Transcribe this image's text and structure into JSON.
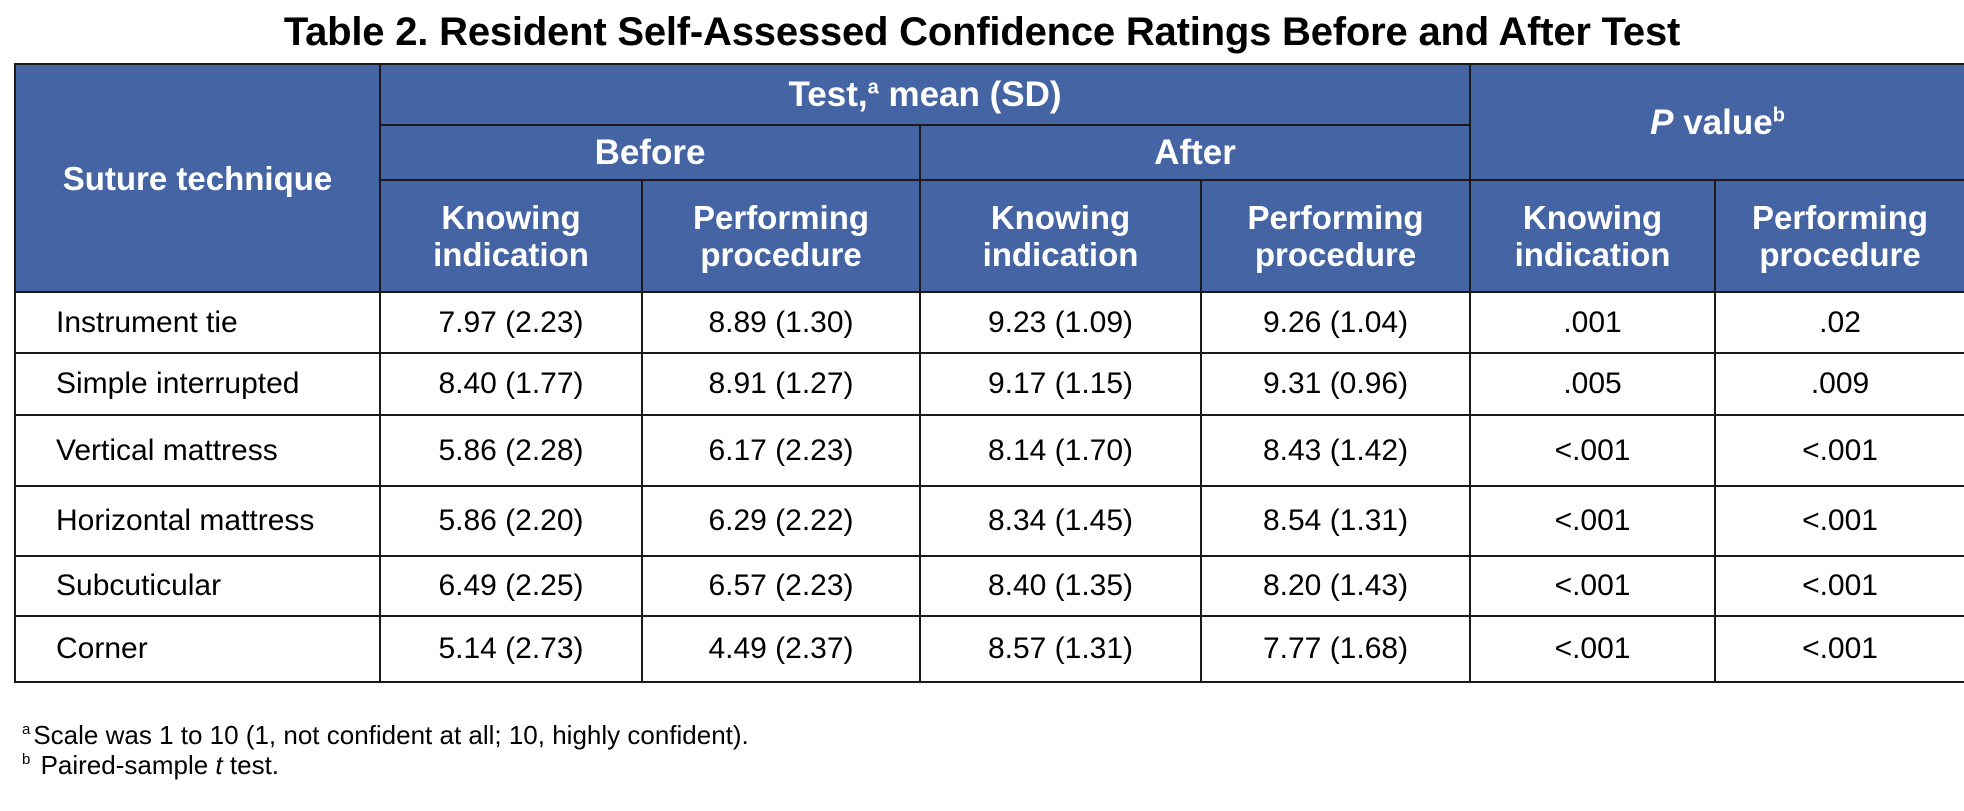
{
  "title": "Table 2. Resident Self-Assessed Confidence Ratings Before and After Test",
  "header": {
    "suture_technique": "Suture technique",
    "test_group": "Test,",
    "test_group_sup": "a",
    "test_group_suffix": " mean (SD)",
    "pvalue_italic": "P",
    "pvalue_text": " value",
    "pvalue_sup": "b",
    "before": "Before",
    "after": "After",
    "knowing_1": "Knowing",
    "knowing_2": "indication",
    "performing_1": "Performing",
    "performing_2": "procedure"
  },
  "rows": [
    {
      "technique": "Instrument tie",
      "before_knowing": "7.97 (2.23)",
      "before_performing": "8.89 (1.30)",
      "after_knowing": "9.23 (1.09)",
      "after_performing": "9.26 (1.04)",
      "p_knowing": ".001",
      "p_performing": ".02"
    },
    {
      "technique": "Simple interrupted",
      "before_knowing": "8.40 (1.77)",
      "before_performing": "8.91 (1.27)",
      "after_knowing": "9.17 (1.15)",
      "after_performing": "9.31 (0.96)",
      "p_knowing": ".005",
      "p_performing": ".009"
    },
    {
      "technique": "Vertical mattress",
      "before_knowing": "5.86 (2.28)",
      "before_performing": "6.17 (2.23)",
      "after_knowing": "8.14 (1.70)",
      "after_performing": "8.43 (1.42)",
      "p_knowing": "<.001",
      "p_performing": "<.001"
    },
    {
      "technique": "Horizontal mattress",
      "before_knowing": "5.86 (2.20)",
      "before_performing": "6.29 (2.22)",
      "after_knowing": "8.34 (1.45)",
      "after_performing": "8.54 (1.31)",
      "p_knowing": "<.001",
      "p_performing": "<.001"
    },
    {
      "technique": "Subcuticular",
      "before_knowing": "6.49 (2.25)",
      "before_performing": "6.57 (2.23)",
      "after_knowing": "8.40 (1.35)",
      "after_performing": "8.20 (1.43)",
      "p_knowing": "<.001",
      "p_performing": "<.001"
    },
    {
      "technique": "Corner",
      "before_knowing": "5.14 (2.73)",
      "before_performing": "4.49 (2.37)",
      "after_knowing": "8.57 (1.31)",
      "after_performing": "7.77 (1.68)",
      "p_knowing": "<.001",
      "p_performing": "<.001"
    }
  ],
  "footnotes": {
    "a_marker": "a",
    "a_text": "Scale was 1 to 10 (1, not confident at all; 10, highly confident).",
    "b_marker": "b",
    "b_text_pre": " Paired-sample ",
    "b_text_italic": "t",
    "b_text_post": " test."
  }
}
